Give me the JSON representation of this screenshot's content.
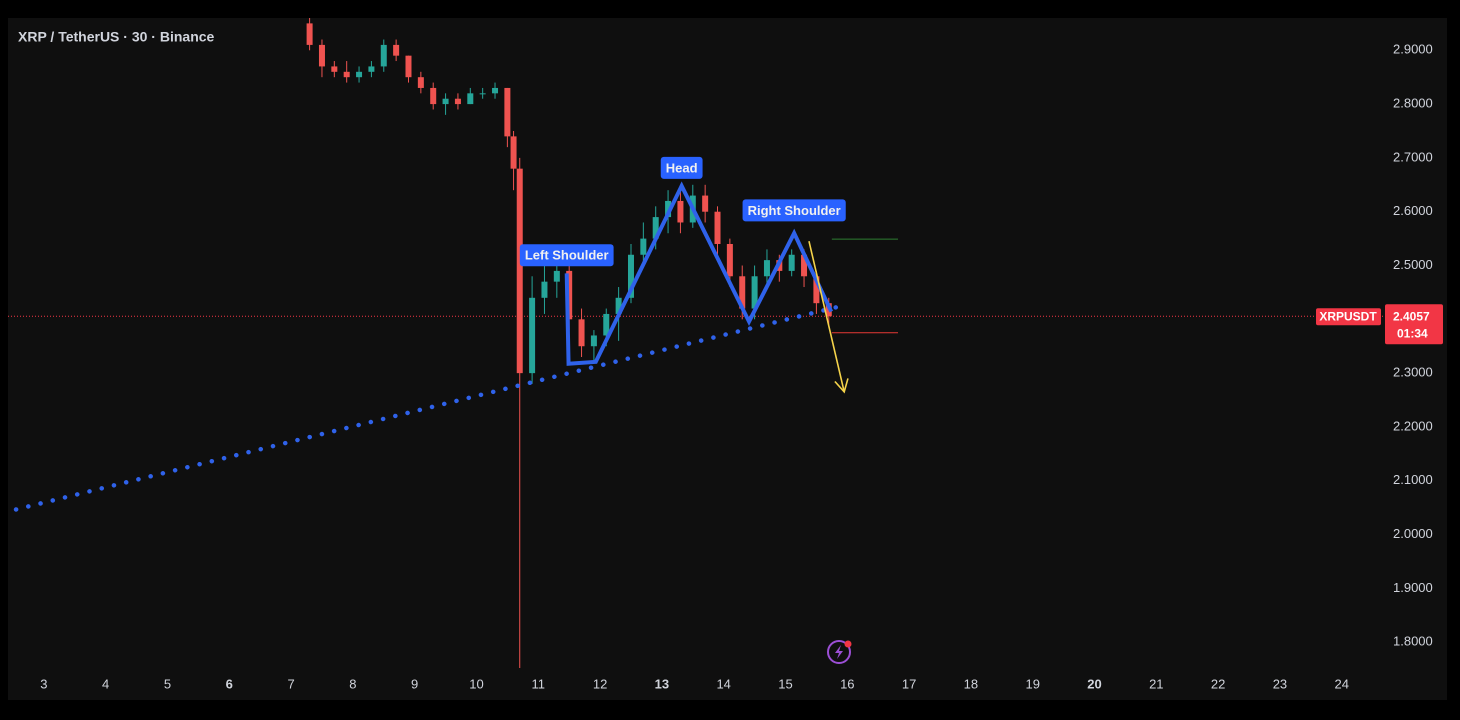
{
  "chart_data": {
    "type": "candlestick",
    "title": "XRP / TetherUS · 30 · Binance",
    "up_color": "#26a69a",
    "down_color": "#ef5350",
    "xlim": [
      2.42,
      24.7
    ],
    "xticks": [
      3,
      4,
      5,
      6,
      7,
      8,
      9,
      10,
      11,
      12,
      13,
      14,
      15,
      16,
      17,
      18,
      19,
      20,
      21,
      22,
      23,
      24
    ],
    "xticks_bold": [
      6,
      13,
      20
    ],
    "ylim": [
      1.752,
      2.96
    ],
    "yticks": [
      {
        "value": 2.9,
        "label": "2.9000"
      },
      {
        "value": 2.8,
        "label": "2.8000"
      },
      {
        "value": 2.7,
        "label": "2.7000"
      },
      {
        "value": 2.6,
        "label": "2.6000"
      },
      {
        "value": 2.5,
        "label": "2.5000"
      },
      {
        "value": 2.4,
        "label": "2.4000"
      },
      {
        "value": 2.3,
        "label": "2.3000"
      },
      {
        "value": 2.2,
        "label": "2.2000"
      },
      {
        "value": 2.1,
        "label": "2.1000"
      },
      {
        "value": 2.0,
        "label": "2.0000"
      },
      {
        "value": 1.9,
        "label": "1.9000"
      },
      {
        "value": 1.8,
        "label": "1.8000"
      }
    ],
    "x": [
      7.3,
      7.5,
      7.7,
      7.9,
      8.1,
      8.3,
      8.5,
      8.7,
      8.9,
      9.1,
      9.3,
      9.5,
      9.7,
      9.9,
      10.1,
      10.3,
      10.5,
      10.6,
      10.7,
      10.9,
      11.1,
      11.3,
      11.5,
      11.7,
      11.9,
      12.1,
      12.3,
      12.5,
      12.7,
      12.9,
      13.1,
      13.3,
      13.5,
      13.7,
      13.9,
      14.1,
      14.3,
      14.5,
      14.7,
      14.9,
      15.1,
      15.3,
      15.5,
      15.7
    ],
    "open": [
      2.95,
      2.91,
      2.87,
      2.86,
      2.85,
      2.86,
      2.87,
      2.91,
      2.89,
      2.85,
      2.83,
      2.8,
      2.81,
      2.8,
      2.82,
      2.82,
      2.83,
      2.74,
      2.68,
      2.3,
      2.44,
      2.47,
      2.49,
      2.4,
      2.35,
      2.37,
      2.41,
      2.44,
      2.52,
      2.55,
      2.59,
      2.62,
      2.58,
      2.63,
      2.6,
      2.54,
      2.48,
      2.42,
      2.48,
      2.51,
      2.49,
      2.52,
      2.48,
      2.43
    ],
    "high": [
      2.96,
      2.92,
      2.88,
      2.88,
      2.87,
      2.88,
      2.92,
      2.92,
      2.89,
      2.86,
      2.84,
      2.82,
      2.82,
      2.83,
      2.83,
      2.84,
      2.83,
      2.75,
      2.7,
      2.48,
      2.5,
      2.5,
      2.5,
      2.42,
      2.38,
      2.42,
      2.46,
      2.54,
      2.58,
      2.61,
      2.64,
      2.65,
      2.65,
      2.65,
      2.61,
      2.55,
      2.5,
      2.5,
      2.53,
      2.52,
      2.53,
      2.53,
      2.49,
      2.44
    ],
    "low": [
      2.9,
      2.85,
      2.85,
      2.84,
      2.84,
      2.85,
      2.86,
      2.88,
      2.84,
      2.82,
      2.79,
      2.78,
      2.79,
      2.8,
      2.81,
      2.81,
      2.72,
      2.64,
      1.752,
      2.28,
      2.41,
      2.44,
      2.38,
      2.33,
      2.32,
      2.35,
      2.36,
      2.43,
      2.5,
      2.53,
      2.56,
      2.56,
      2.57,
      2.58,
      2.52,
      2.46,
      2.4,
      2.4,
      2.46,
      2.47,
      2.48,
      2.46,
      2.41,
      2.39
    ],
    "close": [
      2.91,
      2.87,
      2.86,
      2.85,
      2.86,
      2.87,
      2.91,
      2.89,
      2.85,
      2.83,
      2.8,
      2.81,
      2.8,
      2.82,
      2.82,
      2.83,
      2.74,
      2.68,
      2.3,
      2.44,
      2.47,
      2.49,
      2.4,
      2.35,
      2.37,
      2.41,
      2.44,
      2.52,
      2.55,
      2.59,
      2.62,
      2.58,
      2.63,
      2.6,
      2.54,
      2.48,
      2.42,
      2.48,
      2.51,
      2.49,
      2.52,
      2.48,
      2.43,
      2.4057
    ],
    "last_price": 2.4057,
    "last_price_symbol": "XRPUSDT",
    "countdown": "01:34",
    "last_price_color": "#f23645",
    "pattern": {
      "color": "#2f62ea",
      "x": [
        11.46,
        11.49,
        11.93,
        13.32,
        14.41,
        15.14,
        15.74
      ],
      "y": [
        2.4854,
        2.3174,
        2.321,
        2.6479,
        2.3958,
        2.5601,
        2.4144
      ]
    },
    "neckline": {
      "color": "#2f62ea",
      "x": [
        2.55,
        15.87
      ],
      "y": [
        2.0466,
        2.4238
      ]
    },
    "arrow": {
      "color": "#f5d34a",
      "x": [
        15.38,
        15.95
      ],
      "y": [
        2.5452,
        2.2651
      ]
    },
    "target_lines": [
      {
        "color": "#2e7d32",
        "y": 2.549,
        "x": [
          15.75,
          16.82
        ]
      },
      {
        "color": "#e53935",
        "y": 2.375,
        "x": [
          15.75,
          16.82
        ]
      }
    ],
    "annotations": [
      {
        "text": "Left Shoulder",
        "x": 11.46,
        "y": 2.519
      },
      {
        "text": "Head",
        "x": 13.32,
        "y": 2.6815
      },
      {
        "text": "Right Shoulder",
        "x": 15.14,
        "y": 2.6025
      }
    ]
  }
}
